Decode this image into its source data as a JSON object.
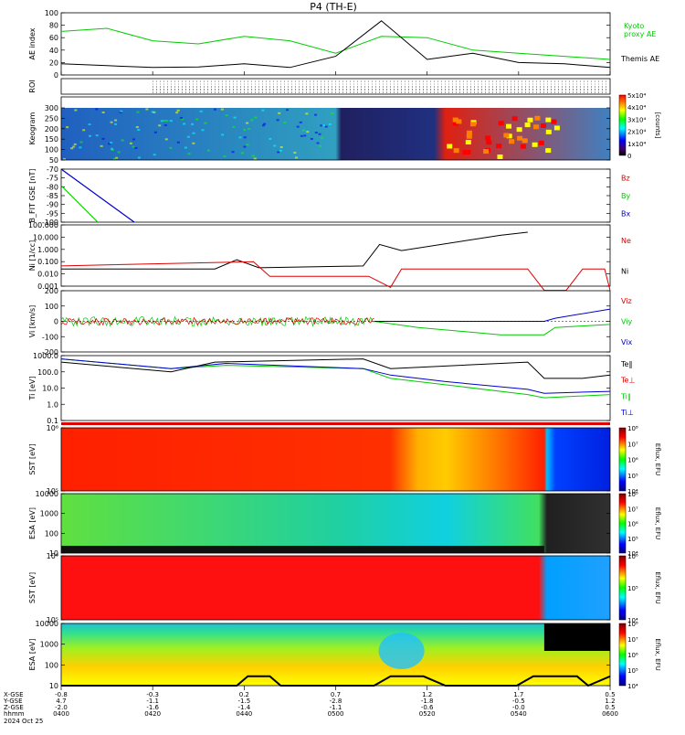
{
  "title": "P4 (TH-E)",
  "colors": {
    "green": "#00cc00",
    "red": "#dd0000",
    "blue": "#0000cc",
    "black": "#000000",
    "gray": "#777777"
  },
  "x_axis": {
    "ticks": [
      "0400",
      "0420",
      "0440",
      "0500",
      "0520",
      "0540",
      "0600"
    ],
    "x_gse": [
      "-0.8",
      "-0.3",
      "0.2",
      "0.7",
      "1.2",
      "1.7",
      "0.5"
    ],
    "y_gse": [
      "4.7",
      "-1.1",
      "-1.5",
      "-2.8",
      "-1.8",
      "-0.5",
      "1.2"
    ],
    "z_gse": [
      "-2.0",
      "-1.6",
      "-1.4",
      "-1.1",
      "-0.6",
      "-0.0",
      "0.5"
    ],
    "row_labels": [
      "X-GSE",
      "Y-GSE",
      "Z-GSE",
      "hhmm",
      "2024 Oct 25"
    ]
  },
  "chart_data": [
    {
      "id": "ae",
      "type": "line",
      "ylabel": "AE index",
      "ylim": [
        0,
        100
      ],
      "yticks": [
        "0",
        "20",
        "40",
        "60",
        "80",
        "100"
      ],
      "x": [
        "0400",
        "0410",
        "0420",
        "0430",
        "0440",
        "0450",
        "0500",
        "0510",
        "0520",
        "0530",
        "0540",
        "0550",
        "0600"
      ],
      "series": [
        {
          "name": "Kyoto proxy AE",
          "color": "green",
          "values": [
            70,
            75,
            55,
            50,
            62,
            55,
            35,
            62,
            60,
            40,
            35,
            30,
            25
          ]
        },
        {
          "name": "Themis AE",
          "color": "black",
          "values": [
            18,
            15,
            12,
            13,
            18,
            12,
            30,
            87,
            25,
            35,
            20,
            18,
            12
          ]
        }
      ],
      "legend_extra": [
        "Kyoto",
        "proxy AE"
      ]
    },
    {
      "id": "roi",
      "type": "scatter",
      "ylabel": "ROI"
    },
    {
      "id": "keogram",
      "type": "heatmap",
      "ylabel": "Keogram",
      "yticks": [
        "50",
        "100",
        "150",
        "200",
        "250",
        "300"
      ],
      "colorbar_ticks": [
        "0",
        "1x10⁴",
        "2x10⁴",
        "3x10⁴",
        "4x10⁴",
        "5x10⁴"
      ],
      "colorbar_label": "[counts]"
    },
    {
      "id": "bfield",
      "type": "line",
      "ylabel": "B_FIT GSE [nT]",
      "ylim": [
        -100,
        -70
      ],
      "yticks": [
        "-100",
        "-95",
        "-90",
        "-85",
        "-80",
        "-75",
        "-70"
      ],
      "legend": [
        {
          "name": "Bz",
          "color": "red"
        },
        {
          "name": "By",
          "color": "green"
        },
        {
          "name": "Bx",
          "color": "blue"
        }
      ]
    },
    {
      "id": "density",
      "type": "line",
      "ylabel": "Ni [1/cc]",
      "yticks": [
        "0.001",
        "0.010",
        "0.100",
        "1.000",
        "10.000",
        "100.000"
      ],
      "legend": [
        {
          "name": "Ne",
          "color": "red"
        },
        {
          "name": "Ni",
          "color": "black"
        }
      ]
    },
    {
      "id": "velocity",
      "type": "line",
      "ylabel": "Vi [km/s]",
      "ylim": [
        -200,
        200
      ],
      "yticks": [
        "-200",
        "-100",
        "0",
        "100",
        "200"
      ],
      "legend": [
        {
          "name": "Viz",
          "color": "red"
        },
        {
          "name": "Viy",
          "color": "green"
        },
        {
          "name": "Vix",
          "color": "blue"
        }
      ]
    },
    {
      "id": "temperature",
      "type": "line",
      "ylabel": "Ti [eV]",
      "yticks": [
        "0.1",
        "1.0",
        "10.0",
        "100.0",
        "1000.0"
      ],
      "legend": [
        {
          "name": "Te‖",
          "color": "black"
        },
        {
          "name": "Te⊥",
          "color": "red"
        },
        {
          "name": "Ti‖",
          "color": "green"
        },
        {
          "name": "Ti⊥",
          "color": "blue"
        }
      ]
    },
    {
      "id": "sst_e",
      "type": "heatmap",
      "ylabel": "SST [eV]",
      "yticks": [
        "10⁵",
        "10⁶"
      ],
      "colorbar_ticks": [
        "10⁴",
        "10⁵",
        "10⁶",
        "10⁷",
        "10⁸"
      ],
      "colorbar_label": "Eflux, EFU"
    },
    {
      "id": "esa_e",
      "type": "heatmap",
      "ylabel": "ESA [eV]",
      "yticks": [
        "10",
        "100",
        "1000",
        "10000"
      ],
      "colorbar_ticks": [
        "10⁴",
        "10⁵",
        "10⁶",
        "10⁷",
        "10⁸"
      ],
      "colorbar_label": "Eflux, EFU"
    },
    {
      "id": "sst_i",
      "type": "heatmap",
      "ylabel": "SST [eV]",
      "yticks": [
        "10⁵",
        "10⁶"
      ],
      "colorbar_ticks": [
        "10⁴",
        "10⁵",
        "10⁶"
      ],
      "colorbar_label": "Eflux, EFU"
    },
    {
      "id": "esa_i",
      "type": "heatmap",
      "ylabel": "ESA [eV]",
      "yticks": [
        "10",
        "100",
        "1000",
        "10000"
      ],
      "colorbar_ticks": [
        "10⁴",
        "10⁵",
        "10⁶",
        "10⁷",
        "10⁸"
      ],
      "colorbar_label": "Eflux, EFU"
    }
  ]
}
